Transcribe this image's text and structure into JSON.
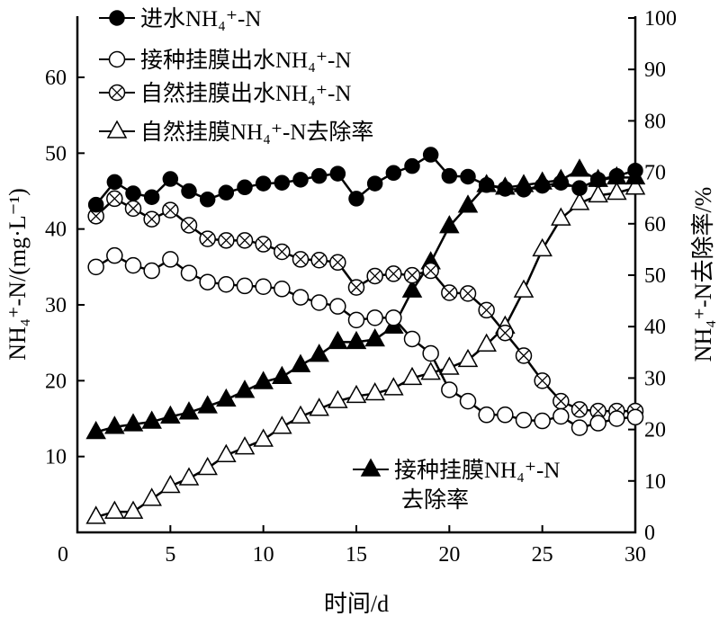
{
  "chart_data": {
    "type": "line",
    "x": [
      1,
      2,
      3,
      4,
      5,
      6,
      7,
      8,
      9,
      10,
      11,
      12,
      13,
      14,
      15,
      16,
      17,
      18,
      19,
      20,
      21,
      22,
      23,
      24,
      25,
      26,
      27,
      28,
      29,
      30
    ],
    "xlabel": "时间/d",
    "ylabel_left": "NH₄⁺-N/(mg·L⁻¹)",
    "ylabel_right": "NH₄⁺-N去除率/%",
    "xlim": [
      0,
      30
    ],
    "ylim_left": [
      0,
      60
    ],
    "ylim_right": [
      0,
      100
    ],
    "x_ticks": [
      "5",
      "10",
      "15",
      "20",
      "25",
      "30"
    ],
    "x_origin_label": "0",
    "y_left_ticks": [
      "0",
      "10",
      "20",
      "30",
      "40",
      "50",
      "60"
    ],
    "y_right_ticks": [
      "0",
      "10",
      "20",
      "30",
      "40",
      "50",
      "60",
      "70",
      "80",
      "90",
      "100"
    ],
    "grid": false,
    "series": [
      {
        "name": "进水NH₄⁺-N",
        "axis": "left",
        "marker": "filled-circle",
        "values": [
          43.2,
          46.2,
          44.7,
          44.2,
          46.6,
          45,
          43.9,
          44.8,
          45.5,
          46,
          46.1,
          46.5,
          47,
          47.3,
          44,
          46,
          47.4,
          48.3,
          49.8,
          47,
          46.9,
          45.8,
          45.3,
          45.2,
          45.7,
          46.1,
          45.4,
          46.5,
          47,
          47.7
        ]
      },
      {
        "name": "接种挂膜出水NH₄⁺-N",
        "axis": "left",
        "marker": "open-circle",
        "values": [
          35,
          36.5,
          35.2,
          34.5,
          36,
          34.2,
          33,
          32.7,
          32.5,
          32.4,
          32.1,
          31,
          30.3,
          29.8,
          28,
          28.3,
          28.3,
          25.5,
          23.6,
          18.8,
          17.3,
          15.5,
          15.5,
          14.8,
          14.7,
          15.3,
          13.8,
          14.4,
          15,
          15.2
        ]
      },
      {
        "name": "自然挂膜出水NH₄⁺-N",
        "axis": "left",
        "marker": "crossed-circle",
        "values": [
          41.7,
          44,
          42.7,
          41.3,
          42.5,
          40.5,
          38.7,
          38.5,
          38.5,
          38,
          37,
          36,
          35.9,
          35.6,
          32.3,
          33.8,
          34.1,
          33.9,
          34.5,
          31.6,
          31.5,
          29.3,
          26.3,
          23.3,
          20,
          17.3,
          16.2,
          16,
          16,
          16
        ]
      },
      {
        "name": "自然挂膜NH₄⁺-N去除率",
        "axis": "right",
        "marker": "open-triangle",
        "values": [
          3,
          4,
          4,
          6.5,
          9,
          10.5,
          12.5,
          15,
          16.5,
          18,
          20.5,
          22.5,
          24,
          25.5,
          26.5,
          27,
          28,
          30,
          31,
          32,
          33.5,
          36.5,
          40,
          47,
          55,
          61,
          64,
          65.5,
          66,
          67
        ]
      },
      {
        "name": "接种挂膜NH₄⁺-N去除率",
        "name_line1": "接种挂膜NH₄⁺-N",
        "name_line2": "去除率",
        "axis": "right",
        "marker": "filled-triangle",
        "values": [
          19.5,
          20.5,
          21,
          21.5,
          22.5,
          23.3,
          24.5,
          25.8,
          27.5,
          29.2,
          30.2,
          32.5,
          34.5,
          37,
          37,
          37.5,
          40,
          47,
          52.5,
          59.5,
          63.5,
          67.5,
          67,
          67.5,
          68,
          68.5,
          70.5,
          68.5,
          69,
          69
        ]
      }
    ],
    "legend": "top-left (fifth entry bottom-right)",
    "colors": {
      "line": "#000000",
      "fill_open": "#ffffff"
    }
  }
}
